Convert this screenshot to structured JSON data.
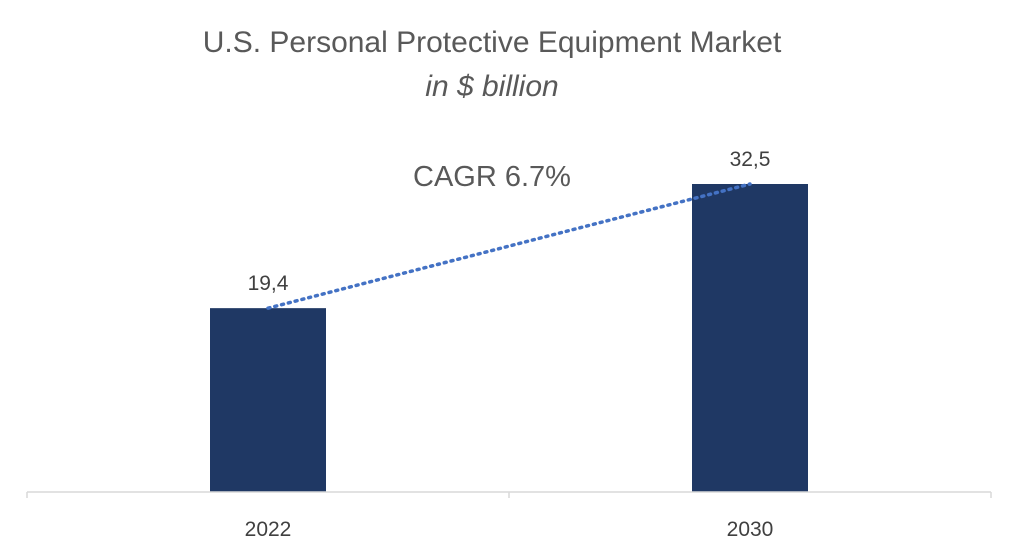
{
  "chart_data": {
    "type": "bar",
    "title": "U.S. Personal Protective Equipment Market",
    "subtitle": "in $ billion",
    "annotation": "CAGR 6.7%",
    "categories": [
      "2022",
      "2030"
    ],
    "values": [
      19.4,
      32.5
    ],
    "value_labels": [
      "19,4",
      "32,5"
    ],
    "ylim": [
      0,
      32.5
    ],
    "grid": false,
    "legend": "none",
    "trendline": "dotted",
    "colors": {
      "bar": "#1F3864",
      "trend": "#4472C4",
      "axis": "#D9D9D9",
      "text": "#595959"
    }
  }
}
